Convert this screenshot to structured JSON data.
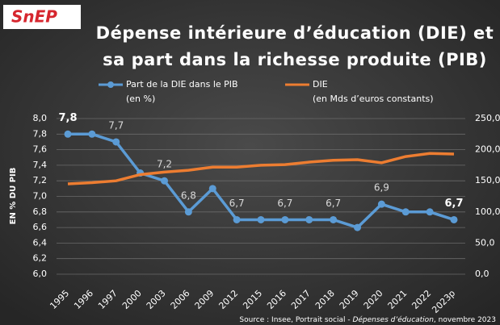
{
  "chart_data": {
    "type": "line",
    "logo": "SnEP",
    "title": [
      "Dépense intérieure d’éducation (DIE) et",
      "sa part dans la richesse produite (PIB)"
    ],
    "y_label": "EN % DU PIB",
    "categories": [
      "1995",
      "1996",
      "1997",
      "2000",
      "2003",
      "2006",
      "2009",
      "2012",
      "2015",
      "2016",
      "2017",
      "2018",
      "2019",
      "2020",
      "2021",
      "2022",
      "2023p"
    ],
    "series": [
      {
        "name": "Part de la DIE dans le PIB",
        "legend_note": "(en %)",
        "color": "#5b9bd5",
        "axis": "y",
        "values": [
          7.8,
          7.8,
          7.7,
          7.3,
          7.2,
          6.8,
          7.1,
          6.7,
          6.7,
          6.7,
          6.7,
          6.7,
          6.6,
          6.9,
          6.8,
          6.8,
          6.7
        ],
        "value_labels": [
          "7,8",
          null,
          "7,7",
          null,
          "7,2",
          "6,8",
          null,
          "6,7",
          null,
          "6,7",
          null,
          "6,7",
          null,
          "6,9",
          null,
          null,
          "6,7"
        ]
      },
      {
        "name": "DIE",
        "legend_note": "(en Mds d’euros constants)",
        "color": "#ed7d31",
        "axis": "y2",
        "values": [
          145,
          147,
          150,
          160,
          164,
          167,
          172,
          172,
          175,
          176,
          180,
          183,
          184,
          179,
          189,
          194,
          193
        ]
      }
    ],
    "ylim": [
      6.0,
      8.0
    ],
    "yticks": [
      {
        "value": 6.0,
        "label": "6,0"
      },
      {
        "value": 6.2,
        "label": "6,2"
      },
      {
        "value": 6.4,
        "label": "6,4"
      },
      {
        "value": 6.6,
        "label": "6,6"
      },
      {
        "value": 6.8,
        "label": "6,8"
      },
      {
        "value": 7.0,
        "label": "7,0"
      },
      {
        "value": 7.2,
        "label": "7,2"
      },
      {
        "value": 7.4,
        "label": "7,4"
      },
      {
        "value": 7.6,
        "label": "7,6"
      },
      {
        "value": 7.8,
        "label": "7,8"
      },
      {
        "value": 8.0,
        "label": "8,0"
      }
    ],
    "y2lim": [
      0,
      250
    ],
    "y2ticks": [
      {
        "value": 0,
        "label": "0,0"
      },
      {
        "value": 50,
        "label": "50,0"
      },
      {
        "value": 100,
        "label": "100,0"
      },
      {
        "value": 150,
        "label": "150,0"
      },
      {
        "value": 200,
        "label": "200,0"
      },
      {
        "value": 250,
        "label": "250,0"
      }
    ],
    "grid": true,
    "source": [
      "Source : Insee, Portrait social - ",
      "Dépenses d’éducation",
      ", novembre 2023"
    ]
  }
}
